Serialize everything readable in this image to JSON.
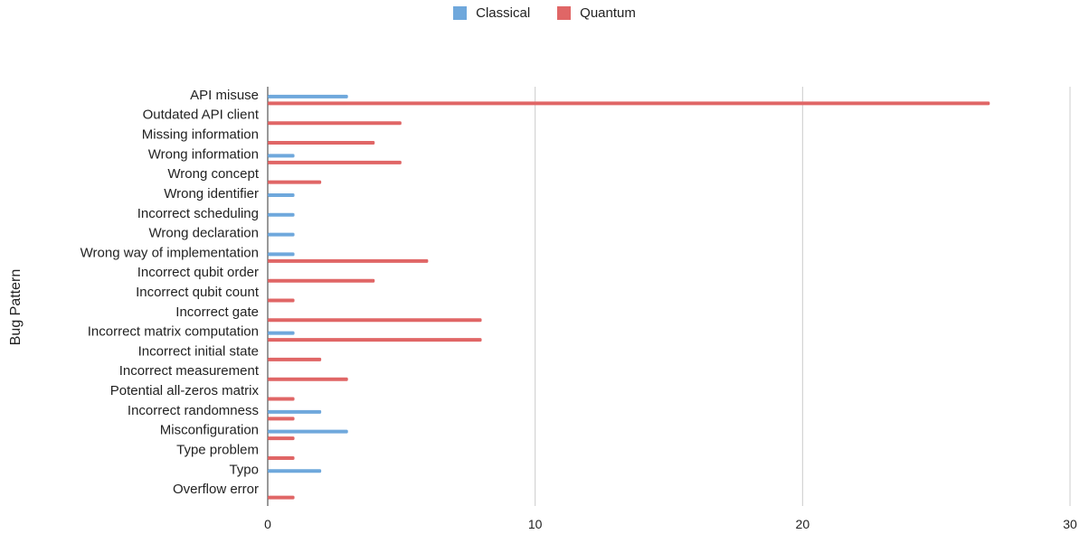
{
  "chart_data": {
    "type": "bar",
    "orientation": "horizontal",
    "categories": [
      "API misuse",
      "Outdated API client",
      "Missing information",
      "Wrong information",
      "Wrong concept",
      "Wrong identifier",
      "Incorrect scheduling",
      "Wrong declaration",
      "Wrong way of implementation",
      "Incorrect qubit order",
      "Incorrect qubit count",
      "Incorrect gate",
      "Incorrect matrix computation",
      "Incorrect initial state",
      "Incorrect measurement",
      "Potential all-zeros matrix",
      "Incorrect randomness",
      "Misconfiguration",
      "Type problem",
      "Typo",
      "Overflow error"
    ],
    "series": [
      {
        "name": "Classical",
        "color": "#6fa8dc",
        "values": [
          3,
          0,
          0,
          1,
          0,
          1,
          1,
          1,
          1,
          0,
          0,
          0,
          1,
          0,
          0,
          0,
          2,
          3,
          0,
          2,
          0
        ]
      },
      {
        "name": "Quantum",
        "color": "#e06666",
        "values": [
          27,
          5,
          4,
          5,
          2,
          0,
          0,
          0,
          6,
          4,
          1,
          8,
          8,
          2,
          3,
          1,
          1,
          1,
          1,
          0,
          1
        ]
      }
    ],
    "xlim": [
      0,
      30
    ],
    "xticks": [
      0,
      10,
      20,
      30
    ],
    "ylabel": "Bug Pattern",
    "xlabel": "",
    "grid": "vertical",
    "legend_position": "top-center"
  }
}
